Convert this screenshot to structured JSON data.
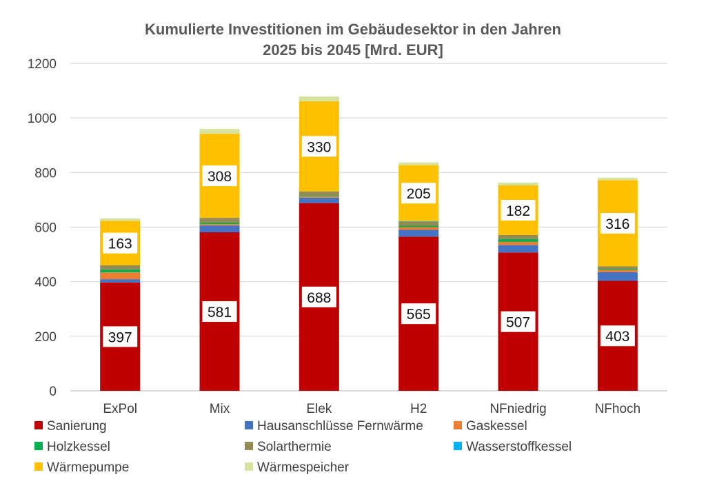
{
  "chart_data": {
    "type": "bar",
    "stacked": true,
    "title": [
      "Kumulierte Investitionen im Gebäudesektor in den Jahren",
      "2025 bis 2045 [Mrd. EUR]"
    ],
    "categories": [
      "ExPol",
      "Mix",
      "Elek",
      "H2",
      "NFniedrig",
      "NFhoch"
    ],
    "ylim": [
      0,
      1200
    ],
    "yticks": [
      0,
      200,
      400,
      600,
      800,
      1000,
      1200
    ],
    "grid": true,
    "legend_position": "bottom",
    "series": [
      {
        "name": "Sanierung",
        "color": "#C00000",
        "values": [
          397,
          581,
          688,
          565,
          507,
          403
        ],
        "labels_shown": true
      },
      {
        "name": "Hausanschlüsse Fernwärme",
        "color": "#4472C4",
        "values": [
          12,
          25,
          20,
          25,
          27,
          32
        ],
        "labels_shown": false
      },
      {
        "name": "Gaskessel",
        "color": "#ED7D31",
        "values": [
          25,
          5,
          5,
          10,
          12,
          8
        ],
        "labels_shown": false
      },
      {
        "name": "Holzkessel",
        "color": "#00B050",
        "values": [
          10,
          5,
          3,
          5,
          10,
          3
        ],
        "labels_shown": false
      },
      {
        "name": "Solarthermie",
        "color": "#948A54",
        "values": [
          16,
          18,
          15,
          15,
          15,
          10
        ],
        "labels_shown": false
      },
      {
        "name": "Wasserstoffkessel",
        "color": "#00B0F0",
        "values": [
          0,
          0,
          0,
          2,
          0,
          0
        ],
        "labels_shown": false
      },
      {
        "name": "Wärmepumpe",
        "color": "#FFC000",
        "values": [
          163,
          308,
          330,
          205,
          182,
          316
        ],
        "labels_shown": true
      },
      {
        "name": "Wärmespeicher",
        "color": "#D7E4A0",
        "values": [
          9,
          18,
          18,
          10,
          10,
          9
        ],
        "labels_shown": false
      }
    ]
  }
}
